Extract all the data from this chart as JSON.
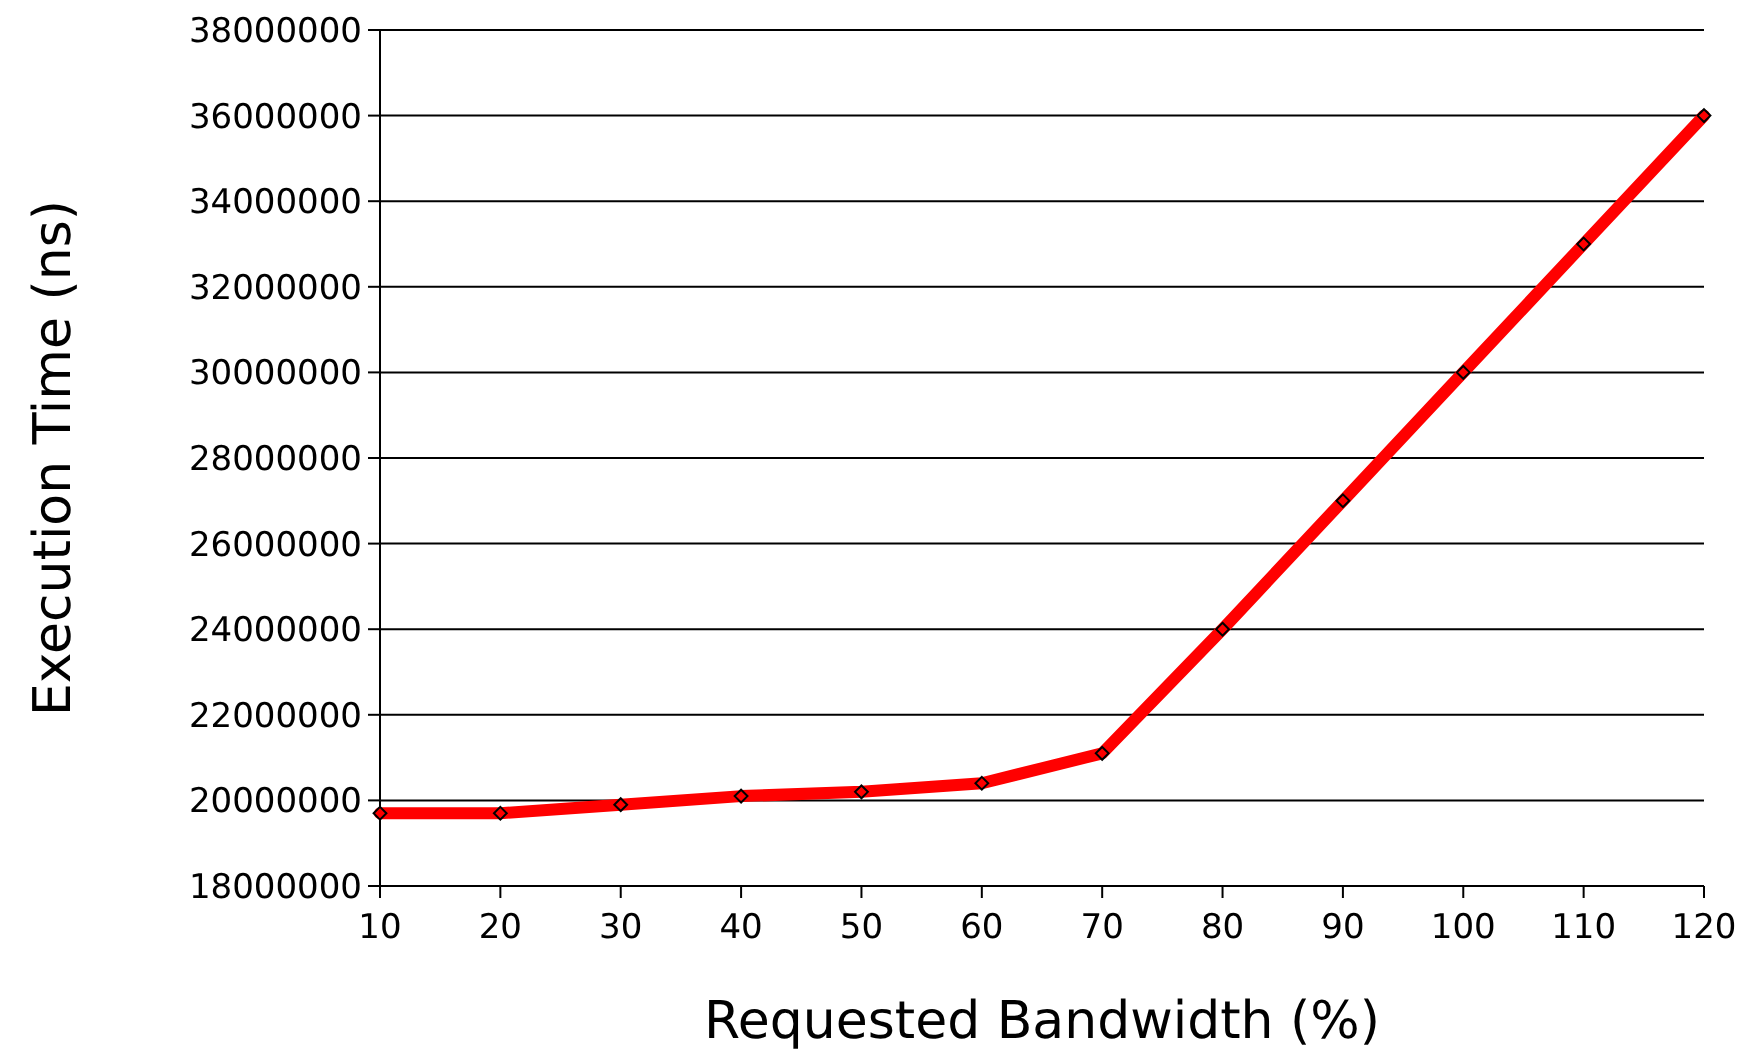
{
  "chart_data": {
    "type": "line",
    "xlabel": "Requested Bandwidth (%)",
    "ylabel": "Execution Time (ns)",
    "x": [
      10,
      20,
      30,
      40,
      50,
      60,
      70,
      80,
      90,
      100,
      110,
      120
    ],
    "series": [
      {
        "color": "#ff0000",
        "values": [
          19700000,
          19700000,
          19900000,
          20100000,
          20200000,
          20400000,
          21100000,
          24000000,
          27000000,
          30000000,
          33000000,
          36000000
        ]
      }
    ],
    "xlim": [
      10,
      120
    ],
    "xticks": [
      10,
      20,
      30,
      40,
      50,
      60,
      70,
      80,
      90,
      100,
      110,
      120
    ],
    "ylim": [
      18000000,
      38000000
    ],
    "yticks": [
      18000000,
      20000000,
      22000000,
      24000000,
      26000000,
      28000000,
      30000000,
      32000000,
      34000000,
      36000000,
      38000000
    ],
    "grid": "y",
    "marker": "diamond",
    "line_style": "solid"
  }
}
